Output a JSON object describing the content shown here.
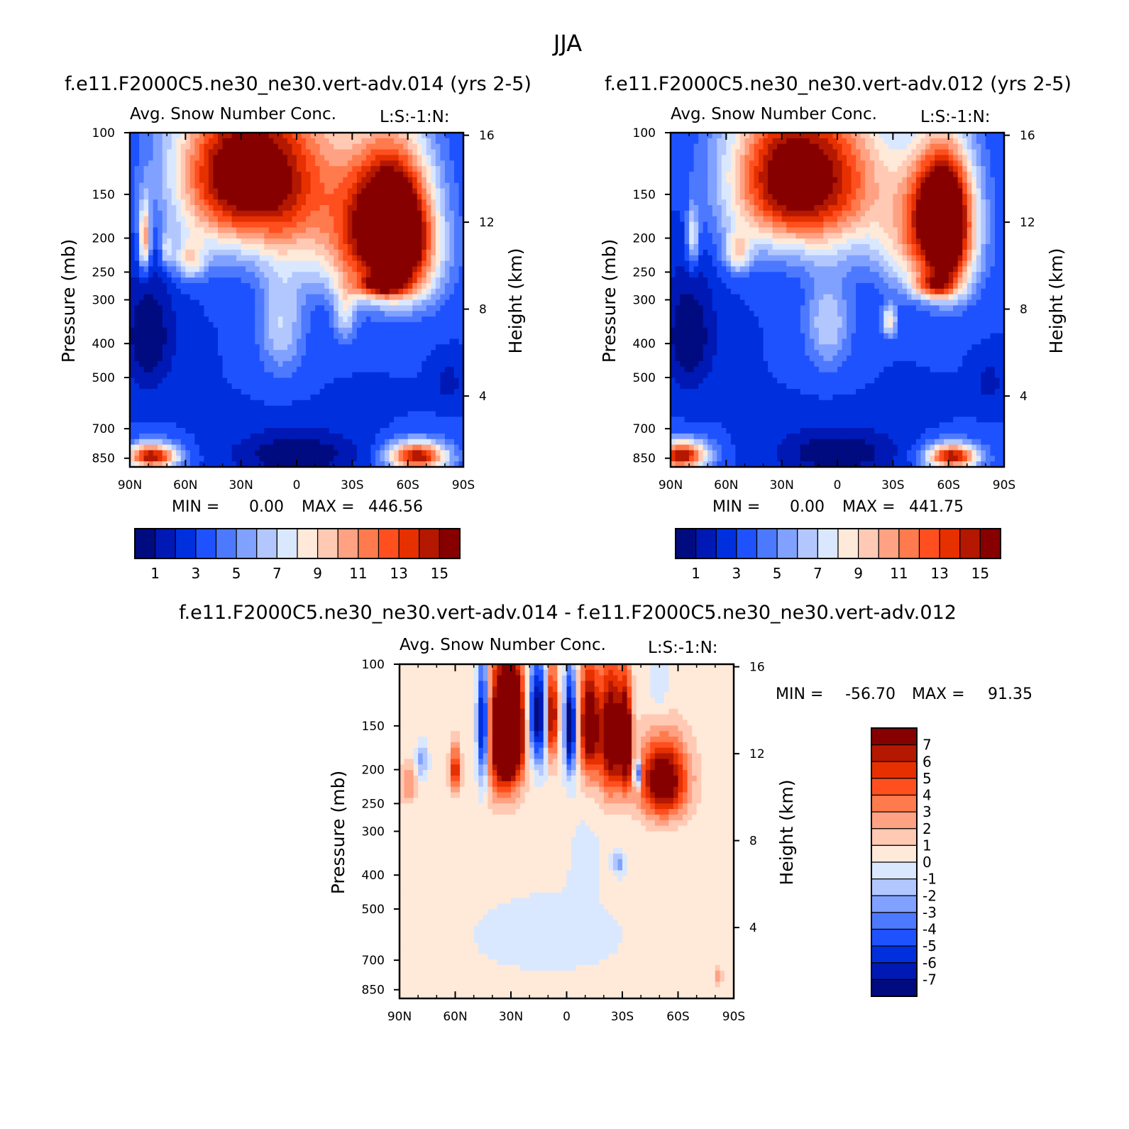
{
  "page_title": "JJA",
  "palettes": {
    "abs": [
      "#000b80",
      "#0019b4",
      "#0030de",
      "#1f52ff",
      "#4d79ff",
      "#80a1ff",
      "#b3c7ff",
      "#d9e8ff",
      "#ffe9d9",
      "#ffc9b3",
      "#ffa183",
      "#ff7a4d",
      "#ff4f1f",
      "#e63000",
      "#b41800",
      "#870000"
    ],
    "diff": [
      "#000b80",
      "#0019b4",
      "#0030de",
      "#1f52ff",
      "#4d79ff",
      "#80a1ff",
      "#b3c7ff",
      "#d9e8ff",
      "#ffe9d9",
      "#ffc9b3",
      "#ffa183",
      "#ff7a4d",
      "#ff4f1f",
      "#e63000",
      "#b41800",
      "#870000"
    ]
  },
  "chart_data": [
    {
      "type": "heatmap",
      "case_title": "f.e11.F2000C5.ne30_ne30.vert-adv.014 (yrs 2-5)",
      "title": "Avg. Snow Number Conc.",
      "units_label": "L:S:-1:N:",
      "ylabel": "Pressure (mb)",
      "y2label": "Height (km)",
      "xticks": [
        "90N",
        "60N",
        "30N",
        "0",
        "30S",
        "60S",
        "90S"
      ],
      "xvalues": [
        90,
        60,
        30,
        0,
        -30,
        -60,
        -90
      ],
      "yticks": [
        "100",
        "150",
        "200",
        "250",
        "300",
        "400",
        "500",
        "700",
        "850"
      ],
      "yvalues": [
        100,
        150,
        200,
        250,
        300,
        400,
        500,
        700,
        850
      ],
      "y2ticks": [
        "16",
        "12",
        "8",
        "4"
      ],
      "y2values": [
        16,
        12,
        8,
        4
      ],
      "ylim": [
        100,
        900
      ],
      "min_label": "MIN =",
      "min_value": "0.00",
      "max_label": "MAX =",
      "max_value": "446.56",
      "colorbar_labels": [
        "1",
        "3",
        "5",
        "7",
        "9",
        "11",
        "13",
        "15"
      ],
      "palette": "abs",
      "features": [
        {
          "type": "bg",
          "v": 3
        },
        {
          "lat": -40,
          "p": 230,
          "rx": 30,
          "rp": 70,
          "a": 7
        },
        {
          "lat": 38,
          "p": 130,
          "rx": 32,
          "rp": 70,
          "a": 9
        },
        {
          "lat": 6,
          "p": 135,
          "rx": 40,
          "rp": 85,
          "a": 9
        },
        {
          "lat": -58,
          "p": 210,
          "rx": 18,
          "rp": 90,
          "a": 9
        },
        {
          "lat": -48,
          "p": 160,
          "rx": 22,
          "rp": 70,
          "a": 9
        },
        {
          "lat": -45,
          "p": 275,
          "rx": 14,
          "rp": 20,
          "a": 6
        },
        {
          "lat": 58,
          "p": 230,
          "rx": 9,
          "rp": 32,
          "a": 5
        },
        {
          "lat": 82,
          "p": 200,
          "rx": 3,
          "rp": 45,
          "a": 8
        },
        {
          "lat": 70,
          "p": 215,
          "rx": 3,
          "rp": 25,
          "a": 4
        },
        {
          "lat": -65,
          "p": 840,
          "rx": 16,
          "rp": 80,
          "a": 12
        },
        {
          "lat": 78,
          "p": 840,
          "rx": 14,
          "rp": 70,
          "a": 12
        },
        {
          "lat": 8,
          "p": 350,
          "rx": 12,
          "rp": 130,
          "a": 4
        },
        {
          "lat": -26,
          "p": 330,
          "rx": 6,
          "rp": 60,
          "a": 4
        },
        {
          "lat": 80,
          "p": 380,
          "rx": 14,
          "rp": 150,
          "a": -3
        },
        {
          "lat": 0,
          "p": 830,
          "rx": 34,
          "rp": 130,
          "a": -3
        },
        {
          "lat": -82,
          "p": 520,
          "rx": 6,
          "rp": 60,
          "a": -2
        }
      ]
    },
    {
      "type": "heatmap",
      "case_title": "f.e11.F2000C5.ne30_ne30.vert-adv.012 (yrs 2-5)",
      "title": "Avg. Snow Number Conc.",
      "units_label": "L:S:-1:N:",
      "ylabel": "Pressure (mb)",
      "y2label": "Height (km)",
      "xticks": [
        "90N",
        "60N",
        "30N",
        "0",
        "30S",
        "60S",
        "90S"
      ],
      "xvalues": [
        90,
        60,
        30,
        0,
        -30,
        -60,
        -90
      ],
      "yticks": [
        "100",
        "150",
        "200",
        "250",
        "300",
        "400",
        "500",
        "700",
        "850"
      ],
      "yvalues": [
        100,
        150,
        200,
        250,
        300,
        400,
        500,
        700,
        850
      ],
      "y2ticks": [
        "16",
        "12",
        "8",
        "4"
      ],
      "y2values": [
        16,
        12,
        8,
        4
      ],
      "ylim": [
        100,
        900
      ],
      "min_label": "MIN =",
      "min_value": "0.00",
      "max_label": "MAX =",
      "max_value": "441.75",
      "colorbar_labels": [
        "1",
        "3",
        "5",
        "7",
        "9",
        "11",
        "13",
        "15"
      ],
      "palette": "abs",
      "features": [
        {
          "type": "bg",
          "v": 3
        },
        {
          "lat": -48,
          "p": 215,
          "rx": 24,
          "rp": 65,
          "a": 7
        },
        {
          "lat": 33,
          "p": 135,
          "rx": 30,
          "rp": 70,
          "a": 9
        },
        {
          "lat": 2,
          "p": 135,
          "rx": 36,
          "rp": 75,
          "a": 9
        },
        {
          "lat": -60,
          "p": 205,
          "rx": 13,
          "rp": 85,
          "a": 9
        },
        {
          "lat": -55,
          "p": 150,
          "rx": 18,
          "rp": 55,
          "a": 9
        },
        {
          "lat": -52,
          "p": 275,
          "rx": 12,
          "rp": 22,
          "a": 6
        },
        {
          "lat": 54,
          "p": 220,
          "rx": 7,
          "rp": 30,
          "a": 5
        },
        {
          "lat": 78,
          "p": 200,
          "rx": 3,
          "rp": 40,
          "a": 5
        },
        {
          "lat": -28,
          "p": 345,
          "rx": 4,
          "rp": 35,
          "a": 6
        },
        {
          "lat": -62,
          "p": 840,
          "rx": 14,
          "rp": 70,
          "a": 12
        },
        {
          "lat": 84,
          "p": 835,
          "rx": 14,
          "rp": 80,
          "a": 12
        },
        {
          "lat": 5,
          "p": 350,
          "rx": 12,
          "rp": 110,
          "a": 4
        },
        {
          "lat": 80,
          "p": 380,
          "rx": 14,
          "rp": 150,
          "a": -3
        },
        {
          "lat": 0,
          "p": 820,
          "rx": 32,
          "rp": 130,
          "a": -3
        },
        {
          "lat": -82,
          "p": 520,
          "rx": 6,
          "rp": 60,
          "a": -2
        }
      ]
    },
    {
      "type": "heatmap",
      "case_title": "f.e11.F2000C5.ne30_ne30.vert-adv.014 - f.e11.F2000C5.ne30_ne30.vert-adv.012",
      "title": "Avg. Snow Number Conc.",
      "units_label": "L:S:-1:N:",
      "ylabel": "Pressure (mb)",
      "y2label": "Height (km)",
      "xticks": [
        "90N",
        "60N",
        "30N",
        "0",
        "30S",
        "60S",
        "90S"
      ],
      "xvalues": [
        90,
        60,
        30,
        0,
        -30,
        -60,
        -90
      ],
      "yticks": [
        "100",
        "150",
        "200",
        "250",
        "300",
        "400",
        "500",
        "700",
        "850"
      ],
      "yvalues": [
        100,
        150,
        200,
        250,
        300,
        400,
        500,
        700,
        850
      ],
      "y2ticks": [
        "16",
        "12",
        "8",
        "4"
      ],
      "y2values": [
        16,
        12,
        8,
        4
      ],
      "ylim": [
        100,
        900
      ],
      "min_label": "MIN =",
      "min_value": "-56.70",
      "max_label": "MAX =",
      "max_value": "91.35",
      "colorbar_labels": [
        "7",
        "6",
        "5",
        "4",
        "3",
        "2",
        "1",
        "0",
        "-1",
        "-2",
        "-3",
        "-4",
        "-5",
        "-6",
        "-7"
      ],
      "palette": "diff",
      "features": [
        {
          "type": "bg",
          "v": 0.3
        },
        {
          "lat": 10,
          "p": 600,
          "rx": 40,
          "rp": 150,
          "a": -0.8
        },
        {
          "lat": -10,
          "p": 350,
          "rx": 10,
          "rp": 100,
          "a": -0.5
        },
        {
          "lat": 35,
          "p": 160,
          "rx": 8,
          "rp": 70,
          "a": 9
        },
        {
          "lat": 28,
          "p": 150,
          "rx": 8,
          "rp": 60,
          "a": 9
        },
        {
          "lat": 45,
          "p": 150,
          "rx": 3,
          "rp": 60,
          "a": -9
        },
        {
          "lat": 16,
          "p": 140,
          "rx": 6,
          "rp": 50,
          "a": -9
        },
        {
          "lat": 8,
          "p": 140,
          "rx": 3,
          "rp": 45,
          "a": 9
        },
        {
          "lat": -2,
          "p": 150,
          "rx": 3,
          "rp": 50,
          "a": -9
        },
        {
          "lat": -12,
          "p": 150,
          "rx": 5,
          "rp": 55,
          "a": 9
        },
        {
          "lat": -24,
          "p": 160,
          "rx": 7,
          "rp": 70,
          "a": 9
        },
        {
          "lat": -32,
          "p": 165,
          "rx": 3,
          "rp": 55,
          "a": 9
        },
        {
          "lat": -38,
          "p": 205,
          "rx": 1.6,
          "rp": 18,
          "a": -9
        },
        {
          "lat": -52,
          "p": 215,
          "rx": 13,
          "rp": 55,
          "a": 9
        },
        {
          "lat": -50,
          "p": 120,
          "rx": 6,
          "rp": 30,
          "a": -1.2
        },
        {
          "lat": 85,
          "p": 220,
          "rx": 5,
          "rp": 30,
          "a": 2.5
        },
        {
          "lat": 78,
          "p": 190,
          "rx": 3,
          "rp": 20,
          "a": -3
        },
        {
          "lat": 60,
          "p": 200,
          "rx": 3,
          "rp": 30,
          "a": 6
        },
        {
          "lat": -28,
          "p": 370,
          "rx": 3,
          "rp": 25,
          "a": -3
        },
        {
          "lat": -82,
          "p": 780,
          "rx": 2,
          "rp": 40,
          "a": 3
        }
      ]
    }
  ]
}
